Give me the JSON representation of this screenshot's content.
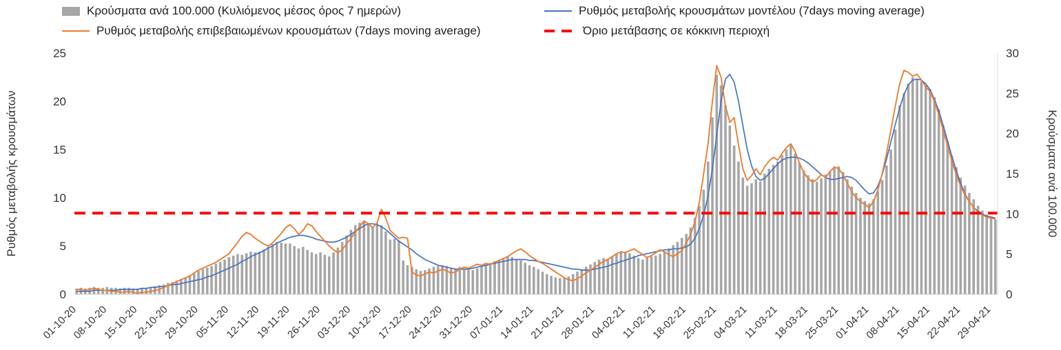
{
  "legend": {
    "bars": "Κρούσματα ανά 100.000 (Κυλιόμενος μέσος όρος 7 ημερών)",
    "model": "Ρυθμός μεταβολής κρουσμάτων μοντέλου (7days moving average)",
    "confirmed": "Ρυθμός μεταβολής επιβεβαιωμένων κρουσμάτων (7days moving average)",
    "threshold": "Όριο μετάβασης σε κόκκινη περιοχή"
  },
  "axes": {
    "left_label": "Ρυθμός μεταβολής κρουσμάτων",
    "right_label": "Κρούσματα ανά 100.000",
    "left_ticks": [
      0,
      5,
      10,
      15,
      20,
      25
    ],
    "right_ticks": [
      0,
      5,
      10,
      15,
      20,
      25,
      30
    ]
  },
  "colors": {
    "bars": "#a6a6a6",
    "model_line": "#4472c4",
    "confirmed_line": "#ed7d31",
    "threshold_line": "#ff0000",
    "axis_line": "#bfbfbf",
    "right_spine": "#d9d9d9",
    "tick_text": "#333333"
  },
  "chart_data": {
    "type": "bar",
    "title": "",
    "grid": false,
    "legend_position": "top",
    "ylim_left": [
      0,
      25
    ],
    "ylim_right": [
      0,
      30
    ],
    "threshold_left_axis": 8.4,
    "threshold_right_axis": 10,
    "x_tick_labels": [
      "01-10-20",
      "08-10-20",
      "15-10-20",
      "22-10-20",
      "29-10-20",
      "05-11-20",
      "12-11-20",
      "19-11-20",
      "26-11-20",
      "03-12-20",
      "10-12-20",
      "17-12-20",
      "24-12-20",
      "31-12-20",
      "07-01-21",
      "14-01-21",
      "21-01-21",
      "28-01-21",
      "04-02-21",
      "11-02-21",
      "18-02-21",
      "25-02-21",
      "04-03-21",
      "11-03-21",
      "18-03-21",
      "25-03-21",
      "01-04-21",
      "08-04-21",
      "15-04-21",
      "22-04-21",
      "29-04-21"
    ],
    "x_tick_indices": [
      0,
      7,
      14,
      21,
      28,
      35,
      42,
      49,
      56,
      63,
      70,
      77,
      84,
      91,
      98,
      105,
      112,
      119,
      126,
      133,
      140,
      147,
      154,
      161,
      168,
      175,
      182,
      189,
      196,
      203,
      210
    ],
    "series": [
      {
        "name": "Κρούσματα ανά 100.000 (Κυλιόμενος μέσος όρος 7 ημερών)",
        "type": "bar",
        "axis": "right",
        "color": "#a6a6a6",
        "values": [
          0.7,
          0.8,
          0.7,
          0.8,
          0.9,
          0.8,
          0.8,
          0.9,
          0.8,
          0.8,
          0.7,
          0.8,
          0.8,
          0.7,
          0.7,
          0.8,
          0.8,
          0.9,
          1.0,
          1.1,
          1.2,
          1.4,
          1.5,
          1.7,
          1.9,
          2.1,
          2.3,
          2.6,
          2.9,
          3.1,
          3.3,
          3.5,
          3.8,
          4.0,
          4.3,
          4.6,
          4.8,
          5.0,
          4.9,
          5.1,
          5.3,
          5.2,
          5.3,
          5.6,
          5.9,
          6.2,
          6.5,
          6.4,
          6.3,
          6.3,
          6.0,
          5.7,
          5.9,
          5.5,
          5.2,
          5.0,
          5.2,
          4.9,
          4.7,
          5.2,
          5.8,
          6.5,
          7.3,
          8.0,
          8.6,
          8.9,
          9.0,
          8.7,
          8.4,
          8.8,
          8.6,
          7.8,
          6.8,
          6.9,
          6.7,
          4.2,
          3.6,
          3.4,
          3.1,
          2.9,
          3.0,
          3.2,
          3.4,
          3.5,
          3.6,
          3.5,
          3.3,
          3.2,
          3.4,
          3.2,
          3.1,
          3.0,
          3.2,
          3.4,
          3.7,
          3.9,
          4.1,
          4.3,
          4.5,
          4.7,
          4.6,
          4.4,
          4.2,
          3.9,
          3.6,
          3.4,
          3.1,
          2.8,
          2.5,
          2.3,
          2.1,
          2.0,
          2.0,
          2.2,
          2.5,
          2.8,
          3.1,
          3.4,
          3.7,
          4.0,
          4.3,
          4.5,
          4.4,
          4.7,
          5.0,
          5.2,
          5.3,
          5.1,
          4.8,
          4.5,
          4.3,
          4.5,
          4.7,
          4.8,
          5.0,
          5.3,
          5.7,
          6.1,
          6.5,
          7.0,
          7.5,
          8.3,
          9.5,
          11.0,
          13.0,
          16.5,
          22.0,
          27.3,
          26.0,
          23.5,
          21.0,
          18.5,
          16.5,
          14.5,
          13.5,
          13.8,
          14.3,
          14.0,
          15.0,
          15.6,
          16.1,
          16.5,
          17.3,
          18.0,
          18.6,
          17.5,
          16.3,
          15.4,
          14.8,
          14.3,
          14.0,
          14.4,
          14.9,
          15.3,
          15.7,
          15.9,
          15.2,
          14.3,
          13.4,
          12.6,
          12.0,
          11.6,
          11.3,
          11.8,
          12.8,
          14.2,
          16.0,
          18.0,
          20.5,
          23.5,
          25.0,
          26.2,
          27.0,
          26.8,
          26.5,
          26.0,
          25.5,
          24.5,
          23.0,
          21.0,
          19.0,
          17.2,
          15.8,
          14.5,
          13.5,
          12.6,
          11.8,
          11.0,
          10.4,
          9.9,
          9.5,
          9.3
        ]
      },
      {
        "name": "Ρυθμός μεταβολής κρουσμάτων μοντέλου (7days moving average)",
        "type": "line",
        "axis": "left",
        "color": "#4472c4",
        "values": [
          0.3,
          0.3,
          0.3,
          0.3,
          0.4,
          0.4,
          0.4,
          0.4,
          0.4,
          0.4,
          0.5,
          0.5,
          0.5,
          0.5,
          0.5,
          0.6,
          0.6,
          0.7,
          0.7,
          0.8,
          0.8,
          0.9,
          1.0,
          1.0,
          1.1,
          1.2,
          1.3,
          1.4,
          1.5,
          1.6,
          1.8,
          1.9,
          2.1,
          2.3,
          2.5,
          2.7,
          2.9,
          3.1,
          3.4,
          3.6,
          3.9,
          4.1,
          4.3,
          4.5,
          4.8,
          5.0,
          5.3,
          5.5,
          5.7,
          5.9,
          6.0,
          6.1,
          6.1,
          6.0,
          5.9,
          5.7,
          5.6,
          5.5,
          5.4,
          5.4,
          5.5,
          5.7,
          5.9,
          6.2,
          6.5,
          6.8,
          7.1,
          7.3,
          7.3,
          7.2,
          7.0,
          6.7,
          6.3,
          5.9,
          5.5,
          5.2,
          4.9,
          4.6,
          4.2,
          3.9,
          3.6,
          3.4,
          3.2,
          3.0,
          2.9,
          2.8,
          2.7,
          2.6,
          2.6,
          2.6,
          2.6,
          2.7,
          2.8,
          2.9,
          3.0,
          3.1,
          3.2,
          3.3,
          3.4,
          3.5,
          3.6,
          3.6,
          3.6,
          3.6,
          3.5,
          3.5,
          3.4,
          3.3,
          3.2,
          3.1,
          3.0,
          2.9,
          2.8,
          2.7,
          2.6,
          2.6,
          2.5,
          2.5,
          2.5,
          2.6,
          2.7,
          2.8,
          2.9,
          3.1,
          3.2,
          3.4,
          3.5,
          3.7,
          3.8,
          4.0,
          4.1,
          4.2,
          4.3,
          4.4,
          4.5,
          4.6,
          4.6,
          4.7,
          4.7,
          4.8,
          4.9,
          5.2,
          5.8,
          6.8,
          8.2,
          10.2,
          13.0,
          16.5,
          20.0,
          22.3,
          22.8,
          22.0,
          20.0,
          17.5,
          15.0,
          13.3,
          12.2,
          11.8,
          12.0,
          12.5,
          13.0,
          13.5,
          13.9,
          14.1,
          14.2,
          14.2,
          14.1,
          13.9,
          13.6,
          13.2,
          12.8,
          12.4,
          12.1,
          11.9,
          11.9,
          12.0,
          12.1,
          12.2,
          12.1,
          11.8,
          11.3,
          10.8,
          10.4,
          10.5,
          11.2,
          12.4,
          14.0,
          15.8,
          17.6,
          19.3,
          20.7,
          21.7,
          22.2,
          22.3,
          22.2,
          21.8,
          21.2,
          20.2,
          19.0,
          17.5,
          15.9,
          14.3,
          12.8,
          11.5,
          10.4,
          9.6,
          9.0,
          8.6,
          8.3,
          8.1,
          8.0,
          7.9
        ]
      },
      {
        "name": "Ρυθμός μεταβολής επιβεβαιωμένων κρουσμάτων (7days moving average)",
        "type": "line",
        "axis": "left",
        "color": "#ed7d31",
        "values": [
          0.5,
          0.5,
          0.4,
          0.5,
          0.6,
          0.5,
          0.4,
          0.4,
          0.3,
          0.3,
          0.2,
          0.2,
          0.3,
          0.2,
          0.1,
          0.2,
          0.2,
          0.3,
          0.4,
          0.5,
          0.7,
          0.9,
          1.1,
          1.3,
          1.5,
          1.7,
          1.9,
          2.2,
          2.5,
          2.7,
          2.9,
          3.1,
          3.3,
          3.6,
          3.9,
          4.2,
          4.8,
          5.4,
          6.0,
          6.4,
          6.2,
          5.8,
          5.5,
          5.2,
          5.0,
          5.3,
          5.8,
          6.3,
          6.9,
          7.2,
          6.8,
          6.2,
          6.6,
          7.3,
          7.1,
          6.5,
          6.0,
          5.5,
          5.0,
          4.6,
          4.3,
          4.6,
          5.2,
          5.8,
          6.4,
          7.0,
          7.6,
          7.3,
          6.9,
          7.4,
          8.8,
          7.9,
          6.6,
          6.2,
          5.8,
          5.9,
          5.8,
          2.3,
          2.0,
          1.9,
          2.1,
          2.3,
          2.2,
          2.4,
          2.6,
          2.4,
          2.2,
          2.3,
          2.6,
          2.8,
          2.7,
          2.9,
          3.1,
          3.0,
          3.2,
          3.1,
          3.3,
          3.5,
          3.7,
          3.9,
          4.2,
          4.5,
          4.7,
          4.4,
          4.0,
          3.7,
          3.4,
          3.2,
          2.9,
          2.6,
          2.3,
          2.0,
          1.7,
          1.5,
          1.4,
          1.6,
          1.9,
          2.2,
          2.5,
          2.8,
          3.1,
          3.4,
          3.6,
          3.9,
          4.2,
          4.4,
          4.3,
          4.5,
          4.7,
          4.4,
          4.1,
          3.8,
          4.0,
          4.3,
          4.6,
          4.4,
          4.1,
          3.9,
          4.2,
          4.5,
          5.3,
          6.2,
          7.5,
          9.5,
          12.5,
          15.6,
          20.0,
          23.7,
          22.5,
          19.5,
          17.8,
          18.3,
          15.5,
          13.0,
          11.8,
          12.3,
          13.0,
          12.4,
          13.2,
          13.8,
          14.2,
          13.9,
          14.6,
          15.2,
          15.6,
          14.8,
          13.6,
          12.6,
          12.0,
          11.6,
          11.9,
          12.4,
          12.1,
          12.7,
          13.2,
          13.0,
          12.4,
          11.5,
          10.6,
          10.0,
          9.6,
          9.3,
          9.0,
          9.6,
          10.8,
          12.5,
          14.6,
          17.0,
          19.5,
          21.8,
          23.2,
          23.0,
          22.6,
          22.8,
          22.2,
          21.5,
          21.0,
          20.0,
          18.6,
          17.0,
          15.4,
          13.8,
          12.4,
          11.2,
          10.3,
          9.6,
          9.0,
          8.5,
          8.2,
          8.0,
          7.9,
          7.8
        ]
      },
      {
        "name": "Όριο μετάβασης σε κόκκινη περιοχή",
        "type": "threshold",
        "axis": "left",
        "color": "#ff0000",
        "value": 8.4
      }
    ]
  }
}
